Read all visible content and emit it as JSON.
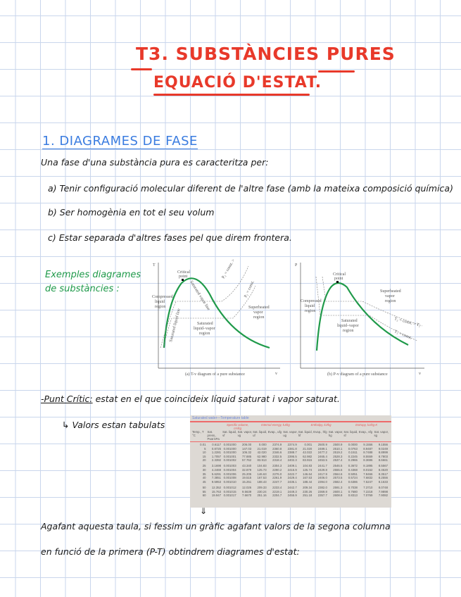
{
  "title": {
    "line1": "T3. SUBSTÀNCIES PURES",
    "line2": "EQUACIÓ D'ESTAT."
  },
  "section1": {
    "heading": "1. DIAGRAMES DE FASE",
    "intro": "Una fase d'una substància pura es caracteritza per:",
    "items": [
      "a) Tenir configuració molecular diferent de l'altre fase (amb la mateixa composició química)",
      "b) Ser homogènia en tot el seu volum",
      "c) Estar separada d'altres fases pel que direm frontera."
    ]
  },
  "examples_label": [
    "Exemples diagrames",
    "de substàncies :"
  ],
  "diagrams": {
    "accent_color": "#1f9a4a",
    "tv": {
      "yaxis": "T",
      "xaxis": "v",
      "critical": [
        "Critical",
        "point"
      ],
      "compressed": [
        "Compressed",
        "liquid",
        "region"
      ],
      "superheated": [
        "Superheated",
        "vapor",
        "region"
      ],
      "saturated_mix": [
        "Saturated",
        "liquid–vapor",
        "region"
      ],
      "p2": "P₂ = const. > P₁",
      "p1": "P₁ = const.",
      "sat_liq": "Saturated liquid line",
      "sat_vap": "Saturated vapor line",
      "caption": "(a) T-v diagram of a pure substance"
    },
    "pv": {
      "yaxis": "P",
      "xaxis": "v",
      "critical": [
        "Critical",
        "point"
      ],
      "compressed": [
        "Compressed",
        "liquid",
        "region"
      ],
      "superheated": [
        "Superheated",
        "vapor",
        "region"
      ],
      "saturated_mix": [
        "Saturated",
        "liquid–vapor",
        "region"
      ],
      "t2": "T₂ = const. > T₁",
      "t1": "T₁ = const.",
      "caption": "(b) P-v diagram of a pure substance"
    }
  },
  "critical_point": {
    "label": "-Punt Crític:",
    "text": "estat en el que coincideix líquid saturat i vapor saturat.",
    "note": "Valors estan tabulats",
    "arrow": "↳"
  },
  "table": {
    "caption": "Saturated water—Temperature table",
    "groups": [
      "Specific volume, m³/kg",
      "Internal energy, kJ/kg",
      "Enthalpy, kJ/kg",
      "Entropy, kJ/kg·K"
    ],
    "headers": [
      "Temp., T °C",
      "Sat. press., Psat kPa",
      "Sat. liquid, vf",
      "Sat. vapor, vg",
      "Sat. liquid, uf",
      "Evap., ufg",
      "Sat. vapor, ug",
      "Sat. liquid, hf",
      "Evap., hfg",
      "Sat. vapor, hg",
      "Sat. liquid, sf",
      "Evap., sfg",
      "Sat. vapor, sg"
    ],
    "rows": [
      [
        "0.01",
        "0.6117",
        "0.001000",
        "206.00",
        "0.000",
        "2374.9",
        "2374.9",
        "0.001",
        "2500.9",
        "2500.9",
        "0.0000",
        "9.1556",
        "9.1556"
      ],
      [
        "5",
        "0.8725",
        "0.001000",
        "147.03",
        "21.019",
        "2360.8",
        "2381.8",
        "21.020",
        "2489.1",
        "2510.1",
        "0.0763",
        "8.9487",
        "9.0249"
      ],
      [
        "10",
        "1.2281",
        "0.001000",
        "106.32",
        "42.020",
        "2346.6",
        "2388.7",
        "42.022",
        "2477.2",
        "2519.2",
        "0.1511",
        "8.7488",
        "8.8999"
      ],
      [
        "15",
        "1.7057",
        "0.001001",
        "77.885",
        "62.980",
        "2332.5",
        "2395.5",
        "62.982",
        "2465.4",
        "2528.3",
        "0.2245",
        "8.5559",
        "8.7803"
      ],
      [
        "20",
        "2.3392",
        "0.001002",
        "57.762",
        "83.913",
        "2318.4",
        "2402.3",
        "83.915",
        "2453.5",
        "2537.4",
        "0.2965",
        "8.3696",
        "8.6661"
      ],
      [
        "25",
        "3.1698",
        "0.001003",
        "43.340",
        "104.83",
        "2304.3",
        "2409.1",
        "104.83",
        "2441.7",
        "2546.5",
        "0.3672",
        "8.1895",
        "8.5567"
      ],
      [
        "30",
        "4.2469",
        "0.001004",
        "32.879",
        "125.73",
        "2290.2",
        "2415.9",
        "125.74",
        "2429.8",
        "2555.6",
        "0.4368",
        "8.0152",
        "8.4520"
      ],
      [
        "35",
        "5.6291",
        "0.001006",
        "25.205",
        "146.63",
        "2276.0",
        "2422.7",
        "146.64",
        "2417.9",
        "2564.6",
        "0.5051",
        "7.8466",
        "8.3517"
      ],
      [
        "40",
        "7.3851",
        "0.001008",
        "19.515",
        "167.53",
        "2261.9",
        "2429.4",
        "167.53",
        "2406.0",
        "2573.5",
        "0.5724",
        "7.6832",
        "8.2556"
      ],
      [
        "45",
        "9.5953",
        "0.001010",
        "15.251",
        "188.43",
        "2247.7",
        "2436.1",
        "188.44",
        "2394.0",
        "2582.4",
        "0.6386",
        "7.5247",
        "8.1633"
      ],
      [
        "50",
        "12.352",
        "0.001012",
        "12.026",
        "209.33",
        "2233.4",
        "2442.7",
        "209.34",
        "2382.0",
        "2591.3",
        "0.7038",
        "7.3710",
        "8.0748"
      ],
      [
        "55",
        "15.763",
        "0.001015",
        "9.5639",
        "230.24",
        "2219.1",
        "2449.3",
        "230.26",
        "2369.8",
        "2600.1",
        "0.7680",
        "7.2218",
        "7.9898"
      ],
      [
        "60",
        "19.947",
        "0.001017",
        "7.6670",
        "251.16",
        "2204.7",
        "2455.9",
        "251.18",
        "2357.7",
        "2608.8",
        "0.8313",
        "7.0769",
        "7.9082"
      ]
    ]
  },
  "arrow_down": "⇓",
  "conclusion": [
    "Agafant aquesta taula, si fessim un gràfic agafant valors de la segona columna",
    "en funció de la primera (P-T) obtindrem diagrames d'estat:"
  ]
}
